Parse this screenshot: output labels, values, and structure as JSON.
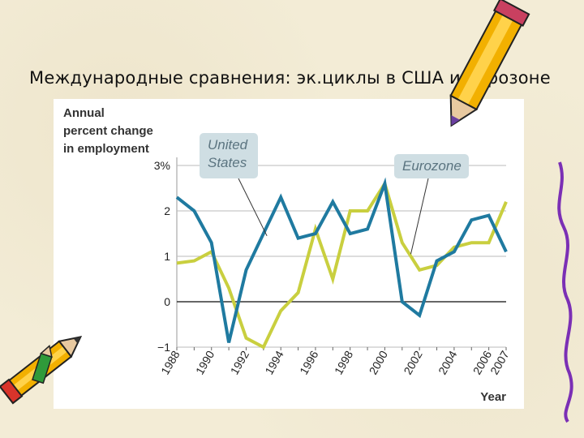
{
  "slide": {
    "title": "Международные сравнения: эк.циклы в США и Еврозоне"
  },
  "colors": {
    "background": "#f3ecd6",
    "united_states": "#1f7aa0",
    "eurozone": "#c9cf3f",
    "callout_box": "#cfdee3",
    "callout_text": "#5b7480"
  },
  "chart_data": {
    "type": "line",
    "ylabel": "Annual\npercent change\nin employment",
    "xlabel": "Year",
    "ylim": [
      -1,
      3
    ],
    "yticks": [
      -1,
      0,
      1,
      2,
      3
    ],
    "ytick_labels": [
      "−1",
      "0",
      "1",
      "2",
      "3%"
    ],
    "xlim": [
      1988,
      2007
    ],
    "xticks": [
      1988,
      1990,
      1992,
      1994,
      1996,
      1998,
      2000,
      2002,
      2004,
      2006,
      2007
    ],
    "grid": "horizontal",
    "x": [
      1988,
      1989,
      1990,
      1991,
      1992,
      1993,
      1994,
      1995,
      1996,
      1997,
      1998,
      1999,
      2000,
      2001,
      2002,
      2003,
      2004,
      2005,
      2006,
      2007
    ],
    "series": [
      {
        "name": "United States",
        "color": "#1f7aa0",
        "values": [
          2.3,
          2.0,
          1.3,
          -0.9,
          0.7,
          1.5,
          2.3,
          1.4,
          1.5,
          2.2,
          1.5,
          1.6,
          2.6,
          0.0,
          -0.3,
          0.9,
          1.1,
          1.8,
          1.9,
          1.1
        ]
      },
      {
        "name": "Eurozone",
        "color": "#c9cf3f",
        "values": [
          0.85,
          0.9,
          1.1,
          0.3,
          -0.8,
          -1.0,
          -0.2,
          0.2,
          1.6,
          0.5,
          2.0,
          2.0,
          2.6,
          1.3,
          0.7,
          0.8,
          1.2,
          1.3,
          1.3,
          2.2
        ]
      }
    ],
    "annotations": [
      {
        "label": "United\nStates",
        "series": "United States"
      },
      {
        "label": "Eurozone",
        "series": "Eurozone"
      }
    ]
  }
}
